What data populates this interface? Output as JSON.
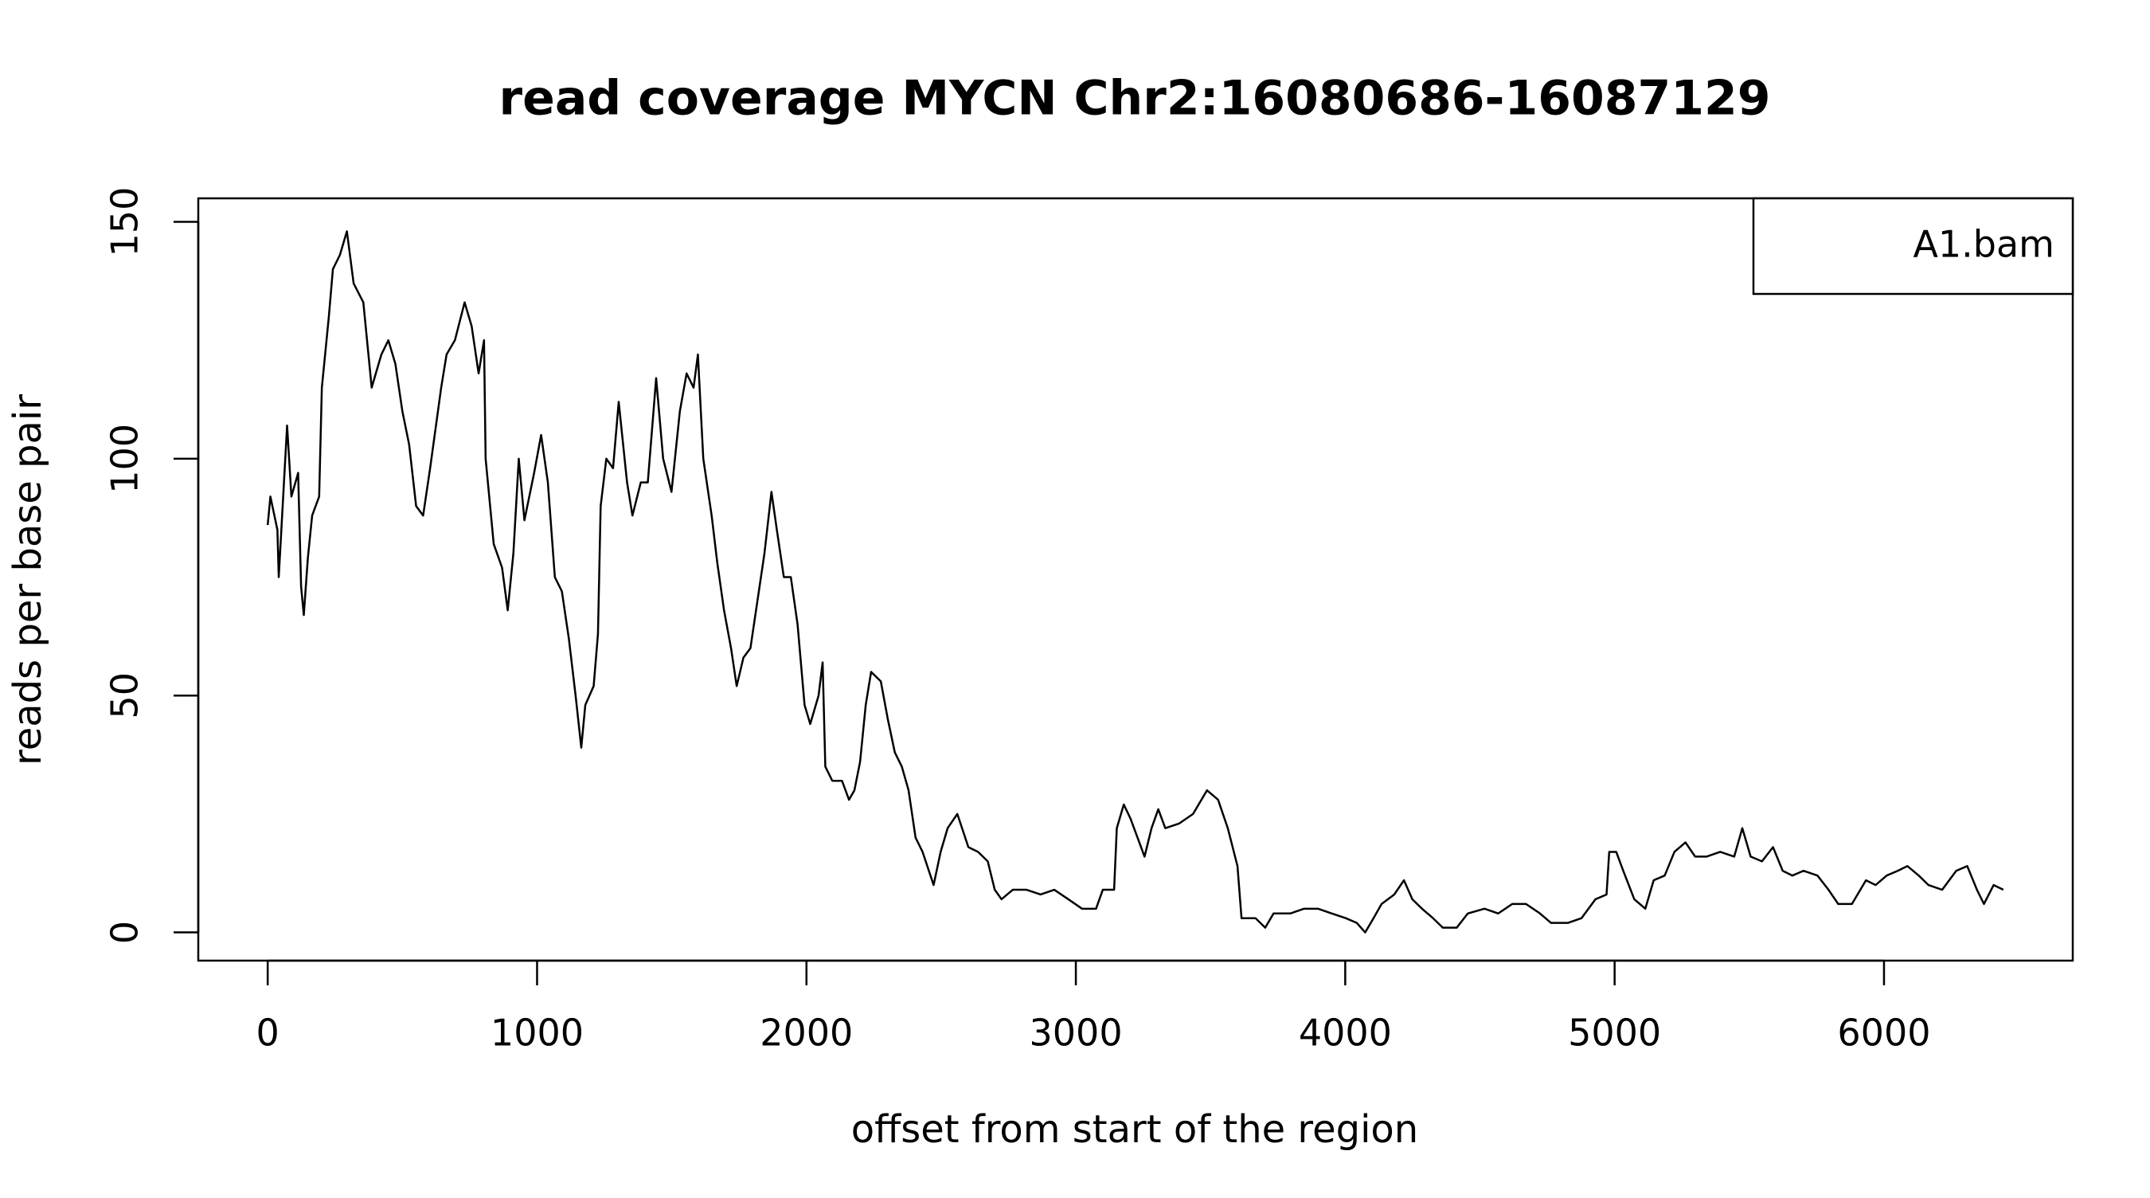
{
  "chart_data": {
    "type": "line",
    "title": "read coverage MYCN  Chr2:16080686-16087129",
    "x_label": "offset from start of the region",
    "y_label": "reads per base pair",
    "xlim": [
      -257.7,
      6700.7
    ],
    "ylim": [
      -5.96,
      154.96
    ],
    "xticks": [
      0,
      1000,
      2000,
      3000,
      4000,
      5000,
      6000
    ],
    "yticks": [
      0,
      50,
      100,
      150
    ],
    "legend": "topright",
    "x": [
      0,
      10,
      36,
      41,
      72,
      88,
      113,
      124,
      134,
      149,
      165,
      191,
      201,
      227,
      242,
      268,
      294,
      319,
      355,
      386,
      422,
      448,
      474,
      500,
      525,
      551,
      577,
      603,
      644,
      664,
      695,
      731,
      757,
      783,
      803,
      809,
      839,
      870,
      891,
      912,
      932,
      953,
      989,
      1015,
      1040,
      1066,
      1092,
      1118,
      1143,
      1164,
      1179,
      1210,
      1226,
      1236,
      1257,
      1282,
      1303,
      1334,
      1354,
      1385,
      1411,
      1442,
      1468,
      1499,
      1530,
      1555,
      1581,
      1597,
      1617,
      1648,
      1669,
      1694,
      1720,
      1741,
      1766,
      1792,
      1818,
      1844,
      1870,
      1890,
      1916,
      1942,
      1967,
      1993,
      2014,
      2045,
      2060,
      2070,
      2096,
      2132,
      2158,
      2178,
      2199,
      2220,
      2240,
      2276,
      2302,
      2328,
      2354,
      2379,
      2405,
      2431,
      2472,
      2498,
      2524,
      2560,
      2601,
      2637,
      2673,
      2699,
      2724,
      2766,
      2817,
      2869,
      2920,
      2972,
      3023,
      3075,
      3100,
      3142,
      3152,
      3178,
      3203,
      3229,
      3255,
      3281,
      3306,
      3332,
      3384,
      3435,
      3487,
      3528,
      3564,
      3600,
      3615,
      3667,
      3703,
      3734,
      3796,
      3847,
      3899,
      3950,
      4002,
      4043,
      4074,
      4105,
      4135,
      4182,
      4218,
      4249,
      4285,
      4326,
      4362,
      4414,
      4455,
      4517,
      4568,
      4620,
      4671,
      4723,
      4764,
      4826,
      4877,
      4929,
      4970,
      4980,
      5006,
      5032,
      5073,
      5114,
      5145,
      5186,
      5222,
      5263,
      5299,
      5341,
      5392,
      5444,
      5474,
      5505,
      5547,
      5588,
      5624,
      5660,
      5701,
      5753,
      5794,
      5830,
      5881,
      5933,
      5969,
      6010,
      6051,
      6087,
      6129,
      6165,
      6216,
      6268,
      6309,
      6345,
      6371,
      6407,
      6443
    ],
    "series": [
      {
        "name": "A1.bam",
        "color": "#000000",
        "values": [
          86,
          92,
          85,
          75,
          107,
          92,
          97,
          73,
          67,
          79,
          88,
          92,
          115,
          130,
          140,
          143,
          148,
          137,
          133,
          115,
          122,
          125,
          120,
          110,
          103,
          90,
          88,
          98,
          115,
          122,
          125,
          133,
          128,
          118,
          125,
          100,
          82,
          77,
          68,
          80,
          100,
          87,
          97,
          105,
          95,
          75,
          72,
          62,
          50,
          39,
          48,
          52,
          63,
          90,
          100,
          98,
          112,
          95,
          88,
          95,
          95,
          117,
          100,
          93,
          110,
          118,
          115,
          122,
          100,
          88,
          78,
          68,
          60,
          52,
          58,
          60,
          70,
          80,
          93,
          85,
          75,
          75,
          65,
          48,
          44,
          50,
          57,
          35,
          32,
          32,
          28,
          30,
          36,
          48,
          55,
          53,
          45,
          38,
          35,
          30,
          20,
          17,
          10,
          17,
          22,
          25,
          18,
          17,
          15,
          9,
          7,
          9,
          9,
          8,
          9,
          7,
          5,
          5,
          9,
          9,
          22,
          27,
          24,
          20,
          16,
          22,
          26,
          22,
          23,
          25,
          30,
          28,
          22,
          14,
          3,
          3,
          1,
          4,
          4,
          5,
          5,
          4,
          3,
          2,
          0,
          3,
          6,
          8,
          11,
          7,
          5,
          3,
          1,
          1,
          4,
          5,
          4,
          6,
          6,
          4,
          2,
          2,
          3,
          7,
          8,
          17,
          17,
          13,
          7,
          5,
          11,
          12,
          17,
          19,
          16,
          16,
          17,
          16,
          22,
          16,
          15,
          18,
          13,
          12,
          13,
          12,
          9,
          6,
          6,
          11,
          10,
          12,
          13,
          14,
          12,
          10,
          9,
          13,
          14,
          9,
          6,
          10,
          9
        ]
      }
    ]
  }
}
